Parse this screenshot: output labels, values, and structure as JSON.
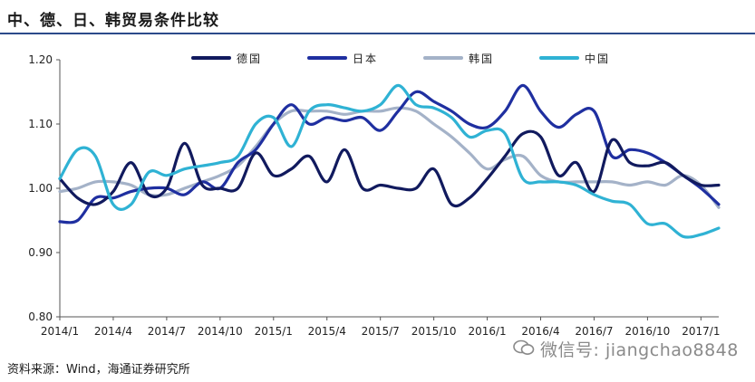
{
  "title": "中、德、日、韩贸易条件比较",
  "source": "资料来源：Wind，海通证券研究所",
  "watermark": "微信号: jiangchao8848",
  "chart_data": {
    "type": "line",
    "title": "中、德、日、韩贸易条件比较",
    "xlabel": "",
    "ylabel": "",
    "ylim": [
      0.8,
      1.2
    ],
    "yticks": [
      "0.80",
      "0.90",
      "1.00",
      "1.10",
      "1.20"
    ],
    "x_tick_labels": [
      "2014/1",
      "2014/4",
      "2014/7",
      "2014/10",
      "2015/1",
      "2015/4",
      "2015/7",
      "2015/10",
      "2016/1",
      "2016/4",
      "2016/7",
      "2016/10",
      "2017/1"
    ],
    "x": [
      "2014/1",
      "2014/2",
      "2014/3",
      "2014/4",
      "2014/5",
      "2014/6",
      "2014/7",
      "2014/8",
      "2014/9",
      "2014/10",
      "2014/11",
      "2014/12",
      "2015/1",
      "2015/2",
      "2015/3",
      "2015/4",
      "2015/5",
      "2015/6",
      "2015/7",
      "2015/8",
      "2015/9",
      "2015/10",
      "2015/11",
      "2015/12",
      "2016/1",
      "2016/2",
      "2016/3",
      "2016/4",
      "2016/5",
      "2016/6",
      "2016/7",
      "2016/8",
      "2016/9",
      "2016/10",
      "2016/11",
      "2016/12",
      "2017/1",
      "2017/2"
    ],
    "grid": false,
    "legend_position": "top",
    "series": [
      {
        "name": "德国",
        "color": "#111a5e",
        "values": [
          1.015,
          0.985,
          0.975,
          0.995,
          1.04,
          0.99,
          1.0,
          1.07,
          1.005,
          1.0,
          1.0,
          1.055,
          1.02,
          1.03,
          1.05,
          1.01,
          1.06,
          1.0,
          1.005,
          1.0,
          1.0,
          1.03,
          0.975,
          0.985,
          1.015,
          1.05,
          1.085,
          1.08,
          1.02,
          1.04,
          0.995,
          1.075,
          1.04,
          1.035,
          1.04,
          1.02,
          1.005,
          1.005
        ]
      },
      {
        "name": "日本",
        "color": "#1f2fa0",
        "values": [
          0.948,
          0.95,
          0.985,
          0.985,
          0.995,
          1.0,
          1.0,
          0.99,
          1.01,
          1.0,
          1.04,
          1.06,
          1.1,
          1.13,
          1.1,
          1.11,
          1.105,
          1.11,
          1.09,
          1.12,
          1.15,
          1.135,
          1.12,
          1.1,
          1.095,
          1.12,
          1.16,
          1.12,
          1.095,
          1.115,
          1.12,
          1.05,
          1.06,
          1.055,
          1.04,
          1.02,
          1.0,
          0.975
        ]
      },
      {
        "name": "韩国",
        "color": "#a4b2c8",
        "values": [
          0.995,
          1.0,
          1.01,
          1.01,
          1.005,
          0.99,
          0.99,
          1.0,
          1.01,
          1.02,
          1.035,
          1.065,
          1.1,
          1.12,
          1.12,
          1.12,
          1.115,
          1.12,
          1.12,
          1.125,
          1.12,
          1.1,
          1.08,
          1.055,
          1.03,
          1.045,
          1.05,
          1.02,
          1.01,
          1.01,
          1.01,
          1.01,
          1.005,
          1.01,
          1.005,
          1.02,
          1.005,
          0.97
        ]
      },
      {
        "name": "中国",
        "color": "#2fb2d4",
        "values": [
          1.015,
          1.06,
          1.05,
          0.975,
          0.975,
          1.025,
          1.02,
          1.03,
          1.035,
          1.04,
          1.05,
          1.1,
          1.11,
          1.065,
          1.12,
          1.13,
          1.125,
          1.12,
          1.13,
          1.16,
          1.13,
          1.125,
          1.11,
          1.08,
          1.09,
          1.085,
          1.015,
          1.01,
          1.01,
          1.005,
          0.99,
          0.98,
          0.975,
          0.945,
          0.945,
          0.925,
          0.928,
          0.938
        ]
      }
    ]
  }
}
